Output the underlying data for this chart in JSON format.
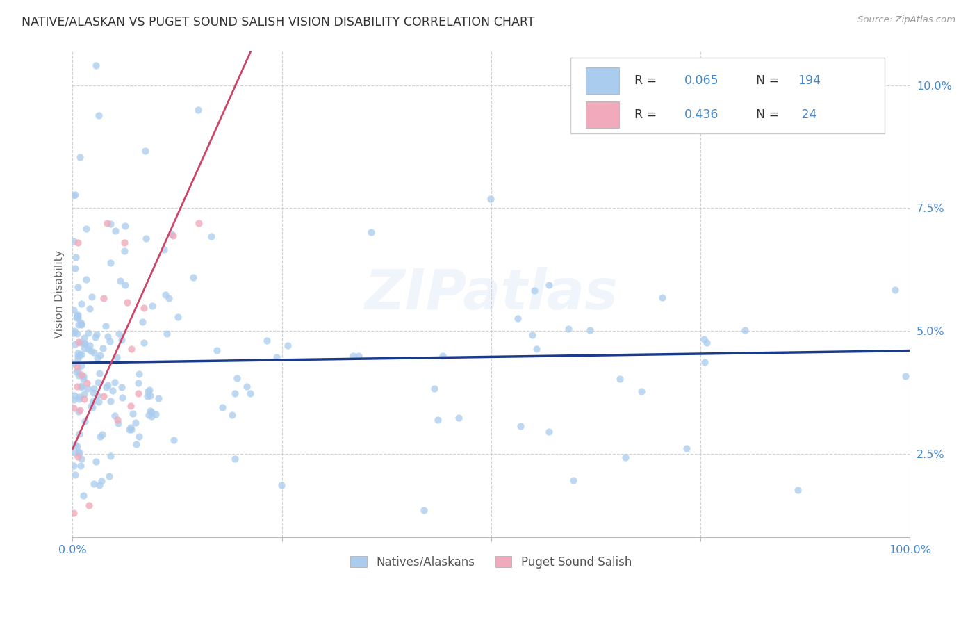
{
  "title": "NATIVE/ALASKAN VS PUGET SOUND SALISH VISION DISABILITY CORRELATION CHART",
  "source": "Source: ZipAtlas.com",
  "ylabel": "Vision Disability",
  "ytick_labels": [
    "2.5%",
    "5.0%",
    "7.5%",
    "10.0%"
  ],
  "ytick_values": [
    0.025,
    0.05,
    0.075,
    0.1
  ],
  "xlim": [
    0.0,
    1.0
  ],
  "ylim": [
    0.008,
    0.107
  ],
  "legend_r_blue": "0.065",
  "legend_n_blue": "194",
  "legend_r_pink": "0.436",
  "legend_n_pink": " 24",
  "blue_color": "#aaccee",
  "pink_color": "#f0aabb",
  "line_blue_color": "#1a3a8a",
  "line_pink_solid_color": "#cc4466",
  "line_pink_dash_color": "#dd6688",
  "text_color": "#4488cc",
  "title_color": "#333333",
  "watermark": "ZIPatlas",
  "background_color": "#ffffff",
  "grid_color": "#cccccc",
  "bottom_label_blue": "Natives/Alaskans",
  "bottom_label_pink": "Puget Sound Salish",
  "blue_line_intercept": 0.0435,
  "blue_line_slope": 0.0025,
  "pink_line_intercept": 0.026,
  "pink_line_slope": 0.038
}
